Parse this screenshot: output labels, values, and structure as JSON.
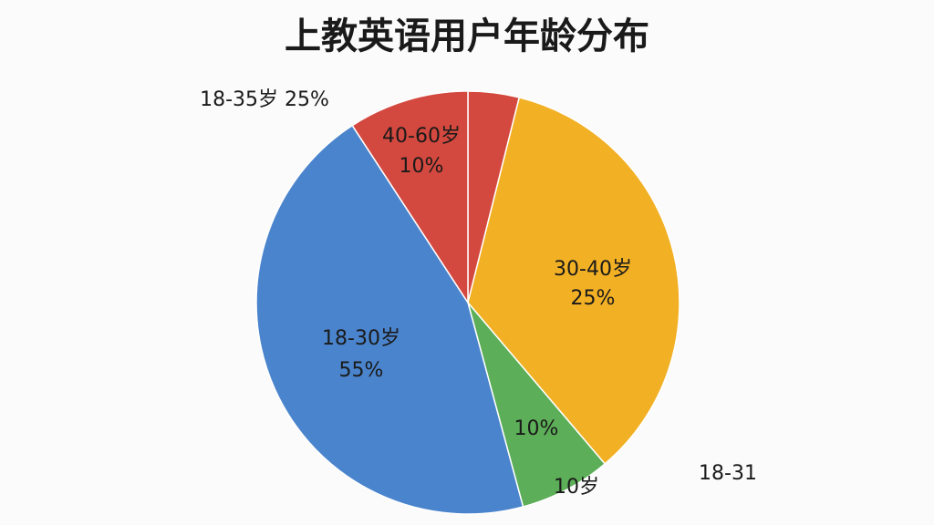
{
  "chart_data": {
    "type": "pie",
    "title": "上教英语用户年龄分布",
    "values": [
      3.9,
      34.9,
      7,
      45,
      9.2
    ],
    "colors": [
      "#d4493f",
      "#f2b025",
      "#5cae58",
      "#4a84cc",
      "#d4493f"
    ],
    "annotations": [
      "18-35岁 25%",
      "40-60岁",
      "10%",
      "30-40岁",
      "25%",
      "18-30岁",
      "55%",
      "10%",
      "10岁",
      "18-31"
    ]
  }
}
